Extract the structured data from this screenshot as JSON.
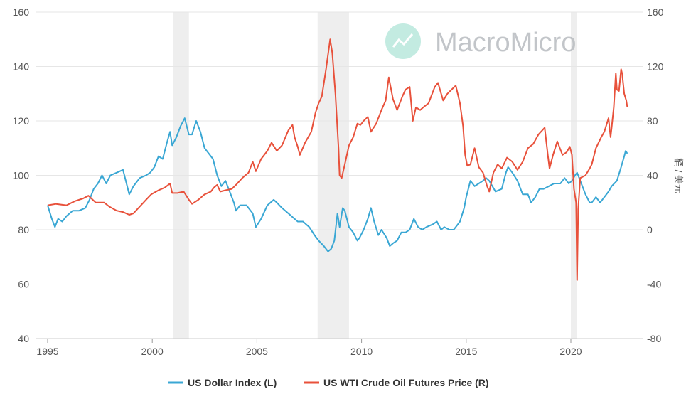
{
  "chart_data": {
    "type": "line",
    "title": "",
    "watermark": "MacroMicro",
    "x_range": [
      1995,
      2022.75
    ],
    "x_ticks": [
      1995,
      2000,
      2005,
      2010,
      2015,
      2020
    ],
    "y_left": {
      "label": "",
      "range": [
        40,
        160
      ],
      "ticks": [
        40,
        60,
        80,
        100,
        120,
        140,
        160
      ]
    },
    "y_right": {
      "label": "桶 / 美元",
      "range": [
        -80,
        160
      ],
      "ticks": [
        -80,
        -40,
        0,
        40,
        80,
        120,
        160
      ]
    },
    "recession_bands": [
      [
        2001.0,
        2001.75
      ],
      [
        2007.9,
        2009.4
      ],
      [
        2020.0,
        2020.3
      ]
    ],
    "grid": true,
    "legend_position": "bottom",
    "colors": {
      "dxy": "#3aa7d4",
      "wti": "#e8513b",
      "recession": "#eeeeee",
      "grid": "#e6e6e6",
      "watermark_icon": "#7dd3c0"
    },
    "series": [
      {
        "name": "US Dollar Index (L)",
        "axis": "left",
        "points": [
          [
            1995.0,
            89
          ],
          [
            1995.2,
            84
          ],
          [
            1995.35,
            81
          ],
          [
            1995.5,
            84
          ],
          [
            1995.7,
            83
          ],
          [
            1995.9,
            85
          ],
          [
            1996.2,
            87
          ],
          [
            1996.5,
            87
          ],
          [
            1996.8,
            88
          ],
          [
            1997.0,
            91
          ],
          [
            1997.2,
            95
          ],
          [
            1997.4,
            97
          ],
          [
            1997.6,
            100
          ],
          [
            1997.8,
            97
          ],
          [
            1998.0,
            100
          ],
          [
            1998.3,
            101
          ],
          [
            1998.6,
            102
          ],
          [
            1998.8,
            96
          ],
          [
            1998.9,
            93
          ],
          [
            1999.1,
            96
          ],
          [
            1999.4,
            99
          ],
          [
            1999.7,
            100
          ],
          [
            1999.9,
            101
          ],
          [
            2000.1,
            103
          ],
          [
            2000.3,
            107
          ],
          [
            2000.5,
            106
          ],
          [
            2000.7,
            112
          ],
          [
            2000.85,
            116
          ],
          [
            2000.95,
            111
          ],
          [
            2001.15,
            114
          ],
          [
            2001.35,
            118
          ],
          [
            2001.55,
            121
          ],
          [
            2001.75,
            115
          ],
          [
            2001.9,
            115
          ],
          [
            2002.1,
            120
          ],
          [
            2002.3,
            116
          ],
          [
            2002.5,
            110
          ],
          [
            2002.7,
            108
          ],
          [
            2002.9,
            106
          ],
          [
            2003.1,
            100
          ],
          [
            2003.3,
            96
          ],
          [
            2003.5,
            98
          ],
          [
            2003.7,
            94
          ],
          [
            2003.9,
            90
          ],
          [
            2004.0,
            87
          ],
          [
            2004.2,
            89
          ],
          [
            2004.5,
            89
          ],
          [
            2004.8,
            86
          ],
          [
            2004.95,
            81
          ],
          [
            2005.2,
            84
          ],
          [
            2005.5,
            89
          ],
          [
            2005.8,
            91
          ],
          [
            2005.95,
            90
          ],
          [
            2006.2,
            88
          ],
          [
            2006.5,
            86
          ],
          [
            2006.8,
            84
          ],
          [
            2006.95,
            83
          ],
          [
            2007.2,
            83
          ],
          [
            2007.5,
            81
          ],
          [
            2007.75,
            78
          ],
          [
            2007.95,
            76
          ],
          [
            2008.2,
            74
          ],
          [
            2008.4,
            72
          ],
          [
            2008.55,
            73
          ],
          [
            2008.7,
            76
          ],
          [
            2008.85,
            86
          ],
          [
            2008.95,
            81
          ],
          [
            2009.1,
            88
          ],
          [
            2009.2,
            87
          ],
          [
            2009.4,
            81
          ],
          [
            2009.6,
            79
          ],
          [
            2009.8,
            76
          ],
          [
            2009.9,
            77
          ],
          [
            2010.1,
            80
          ],
          [
            2010.3,
            84
          ],
          [
            2010.45,
            88
          ],
          [
            2010.6,
            83
          ],
          [
            2010.8,
            78
          ],
          [
            2010.95,
            80
          ],
          [
            2011.2,
            77
          ],
          [
            2011.35,
            74
          ],
          [
            2011.5,
            75
          ],
          [
            2011.7,
            76
          ],
          [
            2011.9,
            79
          ],
          [
            2012.1,
            79
          ],
          [
            2012.3,
            80
          ],
          [
            2012.5,
            84
          ],
          [
            2012.7,
            81
          ],
          [
            2012.9,
            80
          ],
          [
            2013.1,
            81
          ],
          [
            2013.4,
            82
          ],
          [
            2013.6,
            83
          ],
          [
            2013.8,
            80
          ],
          [
            2013.95,
            81
          ],
          [
            2014.2,
            80
          ],
          [
            2014.4,
            80
          ],
          [
            2014.5,
            81
          ],
          [
            2014.7,
            83
          ],
          [
            2014.9,
            88
          ],
          [
            2015.0,
            92
          ],
          [
            2015.2,
            98
          ],
          [
            2015.4,
            96
          ],
          [
            2015.6,
            97
          ],
          [
            2015.8,
            98
          ],
          [
            2015.95,
            99
          ],
          [
            2016.1,
            98
          ],
          [
            2016.4,
            94
          ],
          [
            2016.7,
            95
          ],
          [
            2016.9,
            101
          ],
          [
            2017.0,
            103
          ],
          [
            2017.2,
            101
          ],
          [
            2017.45,
            98
          ],
          [
            2017.7,
            93
          ],
          [
            2017.95,
            93
          ],
          [
            2018.1,
            90
          ],
          [
            2018.3,
            92
          ],
          [
            2018.5,
            95
          ],
          [
            2018.7,
            95
          ],
          [
            2018.95,
            96
          ],
          [
            2019.2,
            97
          ],
          [
            2019.5,
            97
          ],
          [
            2019.7,
            99
          ],
          [
            2019.9,
            97
          ],
          [
            2020.05,
            98
          ],
          [
            2020.2,
            100
          ],
          [
            2020.3,
            101
          ],
          [
            2020.5,
            97
          ],
          [
            2020.7,
            93
          ],
          [
            2020.9,
            90
          ],
          [
            2021.0,
            90
          ],
          [
            2021.2,
            92
          ],
          [
            2021.4,
            90
          ],
          [
            2021.6,
            92
          ],
          [
            2021.8,
            94
          ],
          [
            2021.95,
            96
          ],
          [
            2022.2,
            98
          ],
          [
            2022.4,
            103
          ],
          [
            2022.55,
            107
          ],
          [
            2022.62,
            109
          ],
          [
            2022.7,
            108
          ]
        ]
      },
      {
        "name": "US WTI Crude Oil Futures Price (R)",
        "axis": "right",
        "points": [
          [
            1995.0,
            18
          ],
          [
            1995.4,
            19
          ],
          [
            1995.9,
            18
          ],
          [
            1996.3,
            21
          ],
          [
            1996.7,
            23
          ],
          [
            1996.95,
            25
          ],
          [
            1997.3,
            20
          ],
          [
            1997.7,
            20
          ],
          [
            1997.95,
            17
          ],
          [
            1998.3,
            14
          ],
          [
            1998.6,
            13
          ],
          [
            1998.9,
            11
          ],
          [
            1999.1,
            12
          ],
          [
            1999.4,
            17
          ],
          [
            1999.7,
            22
          ],
          [
            1999.95,
            26
          ],
          [
            2000.3,
            29
          ],
          [
            2000.6,
            31
          ],
          [
            2000.85,
            34
          ],
          [
            2000.95,
            27
          ],
          [
            2001.2,
            27
          ],
          [
            2001.5,
            28
          ],
          [
            2001.75,
            22
          ],
          [
            2001.9,
            19
          ],
          [
            2002.2,
            22
          ],
          [
            2002.5,
            26
          ],
          [
            2002.8,
            28
          ],
          [
            2002.95,
            31
          ],
          [
            2003.1,
            33
          ],
          [
            2003.25,
            28
          ],
          [
            2003.5,
            29
          ],
          [
            2003.8,
            30
          ],
          [
            2004.0,
            33
          ],
          [
            2004.3,
            38
          ],
          [
            2004.6,
            42
          ],
          [
            2004.8,
            50
          ],
          [
            2004.95,
            43
          ],
          [
            2005.2,
            52
          ],
          [
            2005.5,
            58
          ],
          [
            2005.7,
            64
          ],
          [
            2005.95,
            58
          ],
          [
            2006.2,
            62
          ],
          [
            2006.5,
            73
          ],
          [
            2006.7,
            77
          ],
          [
            2006.8,
            68
          ],
          [
            2006.95,
            61
          ],
          [
            2007.05,
            55
          ],
          [
            2007.3,
            64
          ],
          [
            2007.6,
            72
          ],
          [
            2007.8,
            86
          ],
          [
            2007.95,
            93
          ],
          [
            2008.1,
            98
          ],
          [
            2008.3,
            118
          ],
          [
            2008.5,
            140
          ],
          [
            2008.6,
            130
          ],
          [
            2008.75,
            100
          ],
          [
            2008.9,
            60
          ],
          [
            2008.95,
            40
          ],
          [
            2009.05,
            38
          ],
          [
            2009.2,
            48
          ],
          [
            2009.4,
            62
          ],
          [
            2009.6,
            68
          ],
          [
            2009.8,
            78
          ],
          [
            2009.95,
            77
          ],
          [
            2010.1,
            80
          ],
          [
            2010.3,
            83
          ],
          [
            2010.45,
            72
          ],
          [
            2010.7,
            78
          ],
          [
            2010.95,
            88
          ],
          [
            2011.15,
            95
          ],
          [
            2011.3,
            112
          ],
          [
            2011.5,
            96
          ],
          [
            2011.7,
            88
          ],
          [
            2011.95,
            98
          ],
          [
            2012.1,
            103
          ],
          [
            2012.3,
            105
          ],
          [
            2012.45,
            80
          ],
          [
            2012.6,
            90
          ],
          [
            2012.8,
            88
          ],
          [
            2012.95,
            90
          ],
          [
            2013.2,
            93
          ],
          [
            2013.5,
            105
          ],
          [
            2013.65,
            108
          ],
          [
            2013.9,
            95
          ],
          [
            2014.1,
            100
          ],
          [
            2014.3,
            103
          ],
          [
            2014.5,
            106
          ],
          [
            2014.7,
            93
          ],
          [
            2014.85,
            76
          ],
          [
            2014.95,
            55
          ],
          [
            2015.05,
            47
          ],
          [
            2015.2,
            48
          ],
          [
            2015.4,
            60
          ],
          [
            2015.6,
            46
          ],
          [
            2015.8,
            42
          ],
          [
            2016.0,
            32
          ],
          [
            2016.1,
            28
          ],
          [
            2016.3,
            42
          ],
          [
            2016.5,
            48
          ],
          [
            2016.7,
            45
          ],
          [
            2016.95,
            53
          ],
          [
            2017.2,
            50
          ],
          [
            2017.45,
            44
          ],
          [
            2017.7,
            50
          ],
          [
            2017.95,
            60
          ],
          [
            2018.2,
            63
          ],
          [
            2018.45,
            70
          ],
          [
            2018.75,
            75
          ],
          [
            2018.9,
            55
          ],
          [
            2018.98,
            45
          ],
          [
            2019.15,
            55
          ],
          [
            2019.35,
            65
          ],
          [
            2019.6,
            55
          ],
          [
            2019.8,
            57
          ],
          [
            2019.95,
            61
          ],
          [
            2020.05,
            55
          ],
          [
            2020.15,
            30
          ],
          [
            2020.25,
            20
          ],
          [
            2020.3,
            -37
          ],
          [
            2020.35,
            15
          ],
          [
            2020.45,
            38
          ],
          [
            2020.7,
            40
          ],
          [
            2020.9,
            45
          ],
          [
            2021.0,
            48
          ],
          [
            2021.2,
            60
          ],
          [
            2021.45,
            68
          ],
          [
            2021.6,
            72
          ],
          [
            2021.8,
            82
          ],
          [
            2021.9,
            68
          ],
          [
            2021.95,
            75
          ],
          [
            2022.05,
            90
          ],
          [
            2022.15,
            115
          ],
          [
            2022.2,
            103
          ],
          [
            2022.3,
            102
          ],
          [
            2022.4,
            118
          ],
          [
            2022.45,
            115
          ],
          [
            2022.55,
            100
          ],
          [
            2022.65,
            95
          ],
          [
            2022.7,
            90
          ]
        ]
      }
    ]
  }
}
